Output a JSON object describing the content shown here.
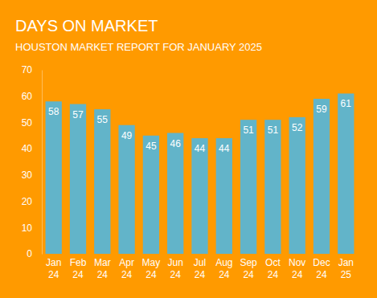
{
  "chart_data": {
    "type": "bar",
    "title": "DAYS ON MARKET",
    "subtitle": "HOUSTON MARKET REPORT FOR JANUARY 2025",
    "categories": [
      "Jan 24",
      "Feb 24",
      "Mar 24",
      "Apr 24",
      "May 24",
      "Jun 24",
      "Jul 24",
      "Aug 24",
      "Sep 24",
      "Oct 24",
      "Nov 24",
      "Dec 24",
      "Jan 25"
    ],
    "values": [
      58,
      57,
      55,
      49,
      45,
      46,
      44,
      44,
      51,
      51,
      52,
      59,
      61
    ],
    "color": "#62b4c9",
    "ylim": [
      0,
      70
    ],
    "yticks": [
      0,
      10,
      20,
      30,
      40,
      50,
      60,
      70
    ],
    "grid": false,
    "data_labels": true
  }
}
